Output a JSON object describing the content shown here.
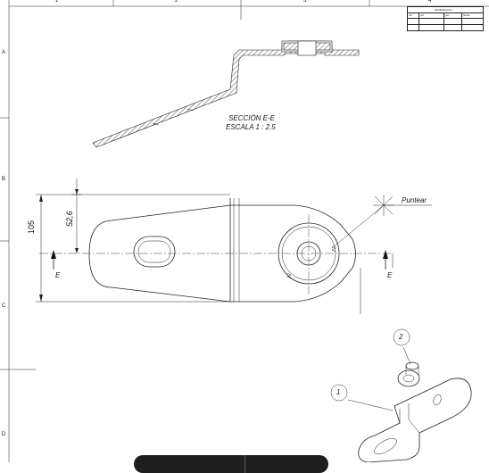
{
  "sheet": {
    "top_zones": [
      "1",
      "2",
      "3",
      "4"
    ],
    "side_zones": [
      "A",
      "B",
      "C",
      "D"
    ]
  },
  "section_label": {
    "line1": "SECCIÓN E-E",
    "line2": "ESCALA 1 : 2.5"
  },
  "dimensions": {
    "overall_height": "105",
    "offset_height": "52,6"
  },
  "section_markers": [
    "E",
    "E"
  ],
  "weld_note": "Puntear",
  "balloons": [
    "1",
    "2"
  ],
  "title_block": {
    "heading": "Modificaciones",
    "columns": [
      "ref",
      "ver",
      "por",
      "fecha"
    ]
  }
}
